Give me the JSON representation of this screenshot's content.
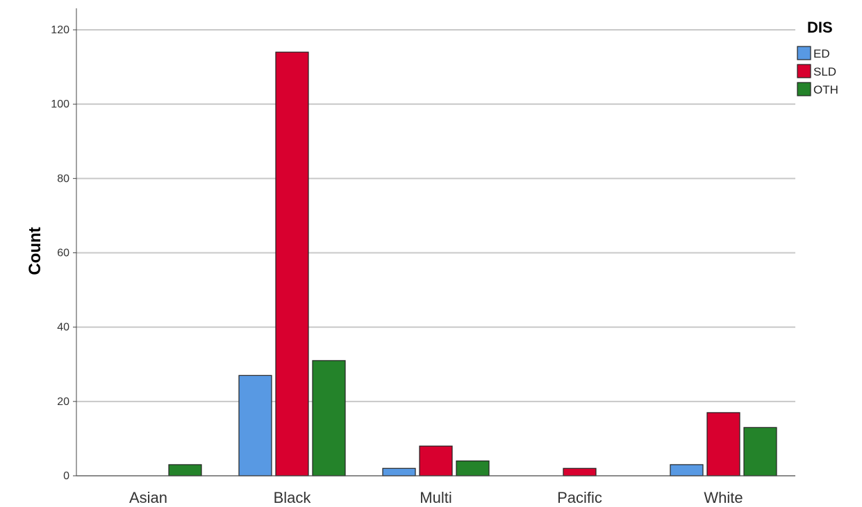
{
  "chart_data": {
    "type": "bar",
    "title": "",
    "xlabel": "",
    "ylabel": "Count",
    "ylim": [
      0,
      120
    ],
    "yticks": [
      0,
      20,
      40,
      60,
      80,
      100,
      120
    ],
    "grid": true,
    "legend_title": "DIS",
    "legend_position": "top-right",
    "categories": [
      "Asian",
      "Black",
      "Multi",
      "Pacific",
      "White"
    ],
    "series": [
      {
        "name": "ED",
        "color": "#5899e3",
        "values": [
          0,
          27,
          2,
          0,
          3
        ]
      },
      {
        "name": "SLD",
        "color": "#d8002f",
        "values": [
          0,
          114,
          8,
          2,
          17
        ]
      },
      {
        "name": "OTH",
        "color": "#24832a",
        "values": [
          3,
          31,
          4,
          0,
          13
        ]
      }
    ]
  }
}
